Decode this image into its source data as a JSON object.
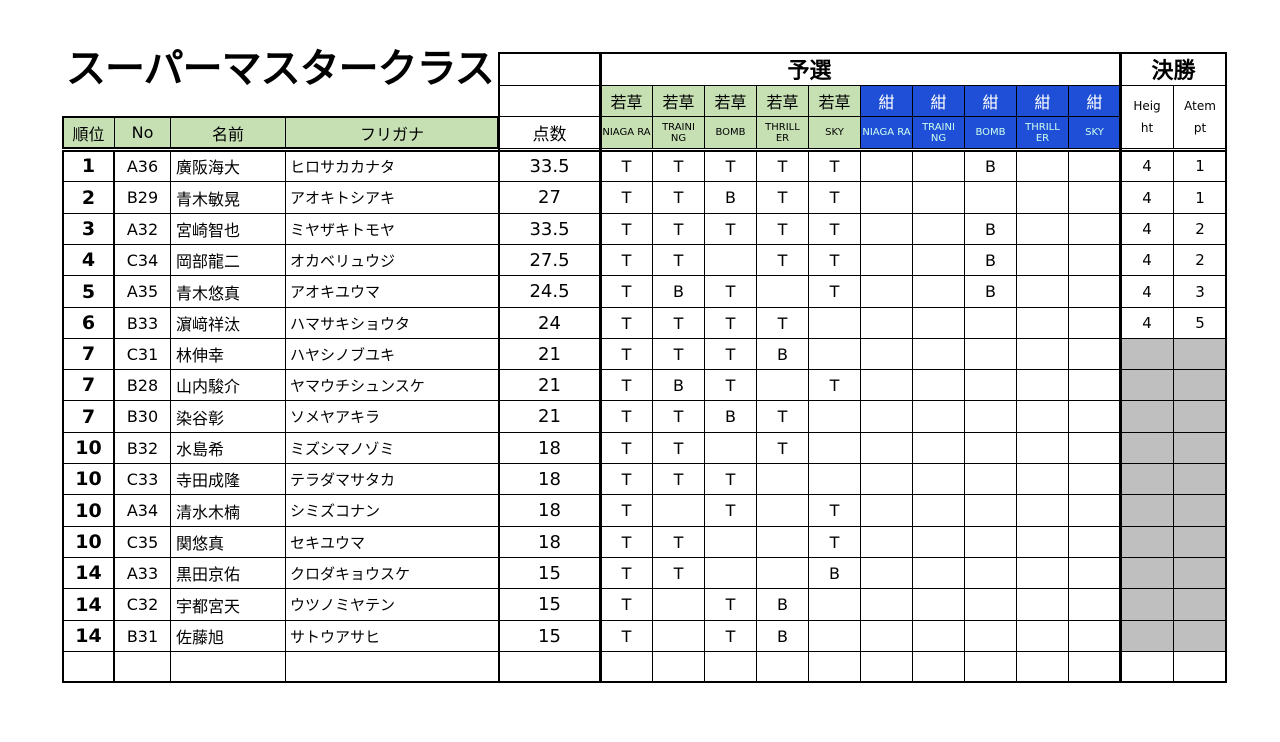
{
  "title": "スーパーマスタークラス",
  "header": {
    "prelim": "予選",
    "final": "決勝",
    "height": "Heig ht",
    "attempt": "Atem pt",
    "rank": "順位",
    "no": "No",
    "name": "名前",
    "kana": "フリガナ",
    "score": "点数",
    "groups": [
      "若草",
      "若草",
      "若草",
      "若草",
      "若草",
      "紺",
      "紺",
      "紺",
      "紺",
      "紺"
    ],
    "events": [
      "NIAGA RA",
      "TRAINI NG",
      "BOMB",
      "THRILL ER",
      "SKY",
      "NIAGA RA",
      "TRAINI NG",
      "BOMB",
      "THRILL ER",
      "SKY"
    ]
  },
  "colors": {
    "green": "#c6e0b4",
    "blue": "#1f4fd6",
    "gray": "#bfbfbf"
  },
  "rows": [
    {
      "rank": "1",
      "no": "A36",
      "name": "廣阪海大",
      "kana": "ヒロサカカナタ",
      "score": "33.5",
      "marks": [
        "T",
        "T",
        "T",
        "T",
        "T",
        "",
        "",
        "B",
        "",
        ""
      ],
      "height": "4",
      "attempt": "1"
    },
    {
      "rank": "2",
      "no": "B29",
      "name": "青木敏晃",
      "kana": "アオキトシアキ",
      "score": "27",
      "marks": [
        "T",
        "T",
        "B",
        "T",
        "T",
        "",
        "",
        "",
        "",
        ""
      ],
      "height": "4",
      "attempt": "1"
    },
    {
      "rank": "3",
      "no": "A32",
      "name": "宮崎智也",
      "kana": "ミヤザキトモヤ",
      "score": "33.5",
      "marks": [
        "T",
        "T",
        "T",
        "T",
        "T",
        "",
        "",
        "B",
        "",
        ""
      ],
      "height": "4",
      "attempt": "2"
    },
    {
      "rank": "4",
      "no": "C34",
      "name": "岡部龍二",
      "kana": "オカベリュウジ",
      "score": "27.5",
      "marks": [
        "T",
        "T",
        "",
        "T",
        "T",
        "",
        "",
        "B",
        "",
        ""
      ],
      "height": "4",
      "attempt": "2"
    },
    {
      "rank": "5",
      "no": "A35",
      "name": "青木悠真",
      "kana": "アオキユウマ",
      "score": "24.5",
      "marks": [
        "T",
        "B",
        "T",
        "",
        "T",
        "",
        "",
        "B",
        "",
        ""
      ],
      "height": "4",
      "attempt": "3"
    },
    {
      "rank": "6",
      "no": "B33",
      "name": "濵﨑祥汰",
      "kana": "ハマサキショウタ",
      "score": "24",
      "marks": [
        "T",
        "T",
        "T",
        "T",
        "",
        "",
        "",
        "",
        "",
        ""
      ],
      "height": "4",
      "attempt": "5"
    },
    {
      "rank": "7",
      "no": "C31",
      "name": "林伸幸",
      "kana": "ハヤシノブユキ",
      "score": "21",
      "marks": [
        "T",
        "T",
        "T",
        "B",
        "",
        "",
        "",
        "",
        "",
        ""
      ],
      "height": "",
      "attempt": "",
      "gray": true
    },
    {
      "rank": "7",
      "no": "B28",
      "name": "山内駿介",
      "kana": "ヤマウチシュンスケ",
      "score": "21",
      "marks": [
        "T",
        "B",
        "T",
        "",
        "T",
        "",
        "",
        "",
        "",
        ""
      ],
      "height": "",
      "attempt": "",
      "gray": true
    },
    {
      "rank": "7",
      "no": "B30",
      "name": "染谷彰",
      "kana": "ソメヤアキラ",
      "score": "21",
      "marks": [
        "T",
        "T",
        "B",
        "T",
        "",
        "",
        "",
        "",
        "",
        ""
      ],
      "height": "",
      "attempt": "",
      "gray": true
    },
    {
      "rank": "10",
      "no": "B32",
      "name": "水島希",
      "kana": "ミズシマノゾミ",
      "score": "18",
      "marks": [
        "T",
        "T",
        "",
        "T",
        "",
        "",
        "",
        "",
        "",
        ""
      ],
      "height": "",
      "attempt": "",
      "gray": true
    },
    {
      "rank": "10",
      "no": "C33",
      "name": "寺田成隆",
      "kana": "テラダマサタカ",
      "score": "18",
      "marks": [
        "T",
        "T",
        "T",
        "",
        "",
        "",
        "",
        "",
        "",
        ""
      ],
      "height": "",
      "attempt": "",
      "gray": true
    },
    {
      "rank": "10",
      "no": "A34",
      "name": "清水木楠",
      "kana": "シミズコナン",
      "score": "18",
      "marks": [
        "T",
        "",
        "T",
        "",
        "T",
        "",
        "",
        "",
        "",
        ""
      ],
      "height": "",
      "attempt": "",
      "gray": true
    },
    {
      "rank": "10",
      "no": "C35",
      "name": "関悠真",
      "kana": "セキユウマ",
      "score": "18",
      "marks": [
        "T",
        "T",
        "",
        "",
        "T",
        "",
        "",
        "",
        "",
        ""
      ],
      "height": "",
      "attempt": "",
      "gray": true
    },
    {
      "rank": "14",
      "no": "A33",
      "name": "黒田京佑",
      "kana": "クロダキョウスケ",
      "score": "15",
      "marks": [
        "T",
        "T",
        "",
        "",
        "B",
        "",
        "",
        "",
        "",
        ""
      ],
      "height": "",
      "attempt": "",
      "gray": true
    },
    {
      "rank": "14",
      "no": "C32",
      "name": "宇都宮天",
      "kana": "ウツノミヤテン",
      "score": "15",
      "marks": [
        "T",
        "",
        "T",
        "B",
        "",
        "",
        "",
        "",
        "",
        ""
      ],
      "height": "",
      "attempt": "",
      "gray": true
    },
    {
      "rank": "14",
      "no": "B31",
      "name": "佐藤旭",
      "kana": "サトウアサヒ",
      "score": "15",
      "marks": [
        "T",
        "",
        "T",
        "B",
        "",
        "",
        "",
        "",
        "",
        ""
      ],
      "height": "",
      "attempt": "",
      "gray": true
    },
    {
      "rank": "",
      "no": "",
      "name": "",
      "kana": "",
      "score": "",
      "marks": [
        "",
        "",
        "",
        "",
        "",
        "",
        "",
        "",
        "",
        ""
      ],
      "height": "",
      "attempt": ""
    }
  ]
}
